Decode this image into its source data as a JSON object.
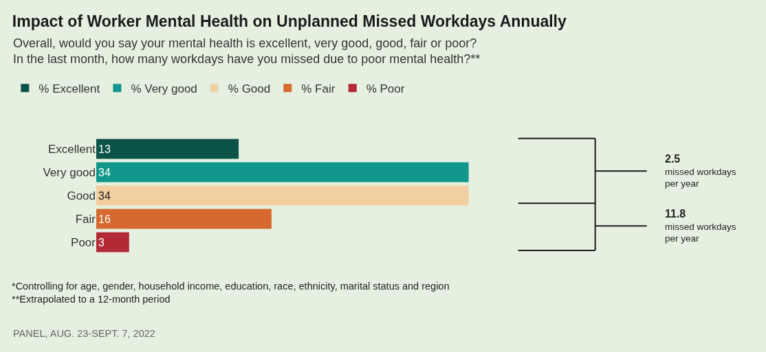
{
  "chart_data": {
    "type": "bar",
    "orientation": "horizontal",
    "title": "Impact of Worker Mental Health on Unplanned Missed Workdays Annually",
    "subtitle": "Overall, would you say your mental health is excellent, very good, good, fair or poor?\nIn the last month, how many workdays have you missed due to poor mental health?**",
    "categories": [
      "Excellent",
      "Very good",
      "Good",
      "Fair",
      "Poor"
    ],
    "series": [
      {
        "name": "% Excellent",
        "color": "#0b5348",
        "values": [
          13,
          null,
          null,
          null,
          null
        ]
      },
      {
        "name": "% Very good",
        "color": "#10968a",
        "values": [
          null,
          34,
          null,
          null,
          null
        ]
      },
      {
        "name": "% Good",
        "color": "#f1cfa0",
        "values": [
          null,
          null,
          34,
          null,
          null
        ]
      },
      {
        "name": "% Fair",
        "color": "#d6692f",
        "values": [
          null,
          null,
          null,
          16,
          null
        ]
      },
      {
        "name": "% Poor",
        "color": "#b22a35",
        "values": [
          null,
          null,
          null,
          null,
          3
        ]
      }
    ],
    "data_labels": true,
    "legend": "top left",
    "annotations": [
      "2.5\nmissed workdays\nper year",
      "11.8\nmissed workdays\nper year",
      "*Controlling for age, gender, household income, education, race, ethnicity, marital status and region\n**Extrapolated to a 12-month period",
      "PANEL, AUG. 23-SEPT. 7, 2022"
    ]
  }
}
